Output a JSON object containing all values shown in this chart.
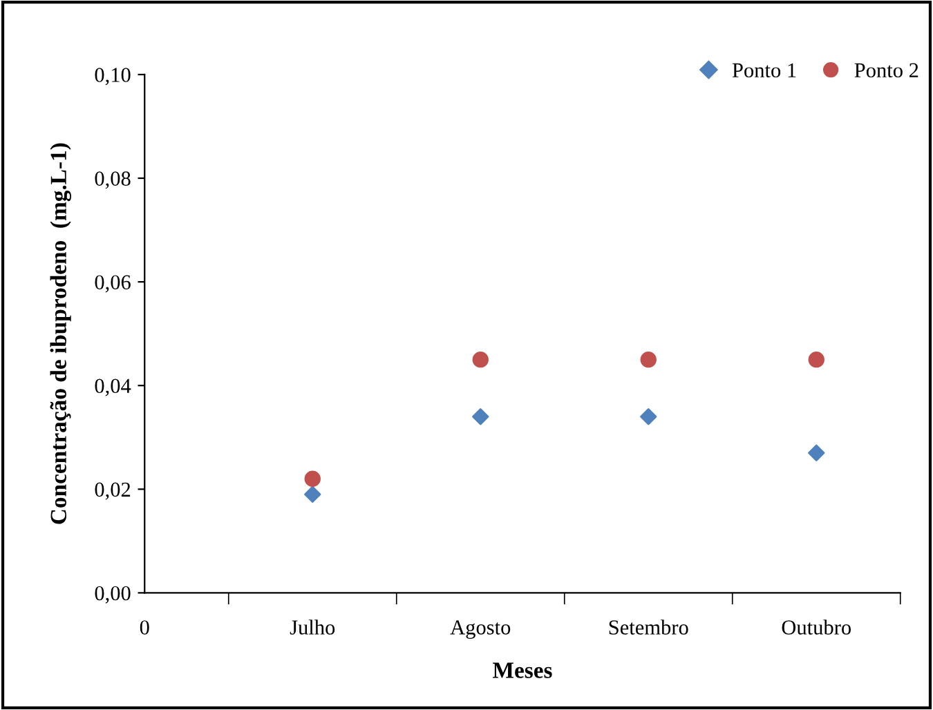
{
  "chart_data": {
    "type": "scatter",
    "xlabel": "Meses",
    "ylabel": "Concentração de ibuprodeno  (mg.L-1)",
    "categories": [
      "0",
      "Julho",
      "Agosto",
      "Setembro",
      "Outubro"
    ],
    "ylim": [
      0,
      0.1
    ],
    "yticks": [
      {
        "value": 0,
        "label": "0,00"
      },
      {
        "value": 0.02,
        "label": "0,02"
      },
      {
        "value": 0.04,
        "label": "0,04"
      },
      {
        "value": 0.06,
        "label": "0,06"
      },
      {
        "value": 0.08,
        "label": "0,08"
      },
      {
        "value": 0.1,
        "label": "0,10"
      }
    ],
    "grid": false,
    "legend": "top right",
    "series": [
      {
        "name": "Ponto 1",
        "color": "#4f81bd",
        "marker": "diamond",
        "values": [
          null,
          0.019,
          0.034,
          0.034,
          0.027
        ]
      },
      {
        "name": "Ponto 2",
        "color": "#c0504d",
        "marker": "circle",
        "values": [
          null,
          0.022,
          0.045,
          0.045,
          0.045
        ]
      }
    ]
  }
}
